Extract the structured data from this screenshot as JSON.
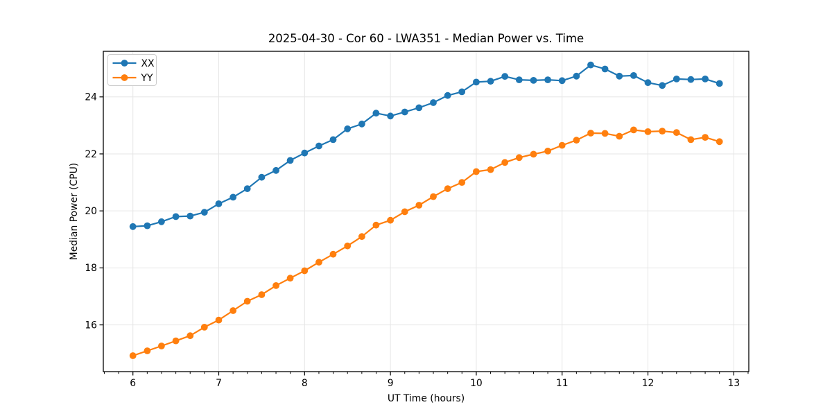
{
  "chart_data": {
    "type": "line",
    "title": "2025-04-30 - Cor 60 - LWA351 - Median Power vs. Time",
    "xlabel": "UT Time (hours)",
    "ylabel": "Median Power (CPU)",
    "xlim": [
      5.655,
      13.175
    ],
    "ylim": [
      14.36,
      25.6
    ],
    "x_major_ticks": [
      6,
      7,
      8,
      9,
      10,
      11,
      12,
      13
    ],
    "x_minor_ticks_per_hour": 6,
    "y_major_ticks": [
      16,
      18,
      20,
      22,
      24
    ],
    "grid": true,
    "legend_position": "upper-left",
    "colors": {
      "XX": "#1f77b4",
      "YY": "#ff7f0e",
      "grid": "#e6e6e6",
      "spine": "#000000",
      "legend_border": "#cccccc",
      "background": "#ffffff"
    },
    "x": [
      6.0,
      6.167,
      6.333,
      6.5,
      6.667,
      6.833,
      7.0,
      7.167,
      7.333,
      7.5,
      7.667,
      7.833,
      8.0,
      8.167,
      8.333,
      8.5,
      8.667,
      8.833,
      9.0,
      9.167,
      9.333,
      9.5,
      9.667,
      9.833,
      10.0,
      10.167,
      10.333,
      10.5,
      10.667,
      10.833,
      11.0,
      11.167,
      11.333,
      11.5,
      11.667,
      11.833,
      12.0,
      12.167,
      12.333,
      12.5,
      12.667,
      12.833
    ],
    "series": [
      {
        "name": "XX",
        "color_key": "XX",
        "values": [
          19.45,
          19.48,
          19.62,
          19.8,
          19.82,
          19.95,
          20.25,
          20.48,
          20.78,
          21.18,
          21.42,
          21.77,
          22.03,
          22.28,
          22.5,
          22.88,
          23.05,
          23.43,
          23.33,
          23.47,
          23.62,
          23.8,
          24.05,
          24.18,
          24.52,
          24.55,
          24.72,
          24.6,
          24.58,
          24.6,
          24.57,
          24.73,
          25.12,
          24.98,
          24.73,
          24.75,
          24.5,
          24.4,
          24.63,
          24.61,
          24.63,
          24.47
        ]
      },
      {
        "name": "YY",
        "color_key": "YY",
        "values": [
          14.92,
          15.09,
          15.26,
          15.44,
          15.62,
          15.92,
          16.17,
          16.5,
          16.83,
          17.06,
          17.38,
          17.64,
          17.9,
          18.2,
          18.48,
          18.77,
          19.1,
          19.5,
          19.67,
          19.97,
          20.2,
          20.5,
          20.78,
          21.0,
          21.38,
          21.45,
          21.7,
          21.87,
          21.99,
          22.1,
          22.3,
          22.48,
          22.73,
          22.72,
          22.62,
          22.84,
          22.78,
          22.8,
          22.75,
          22.5,
          22.58,
          22.43
        ]
      }
    ]
  }
}
